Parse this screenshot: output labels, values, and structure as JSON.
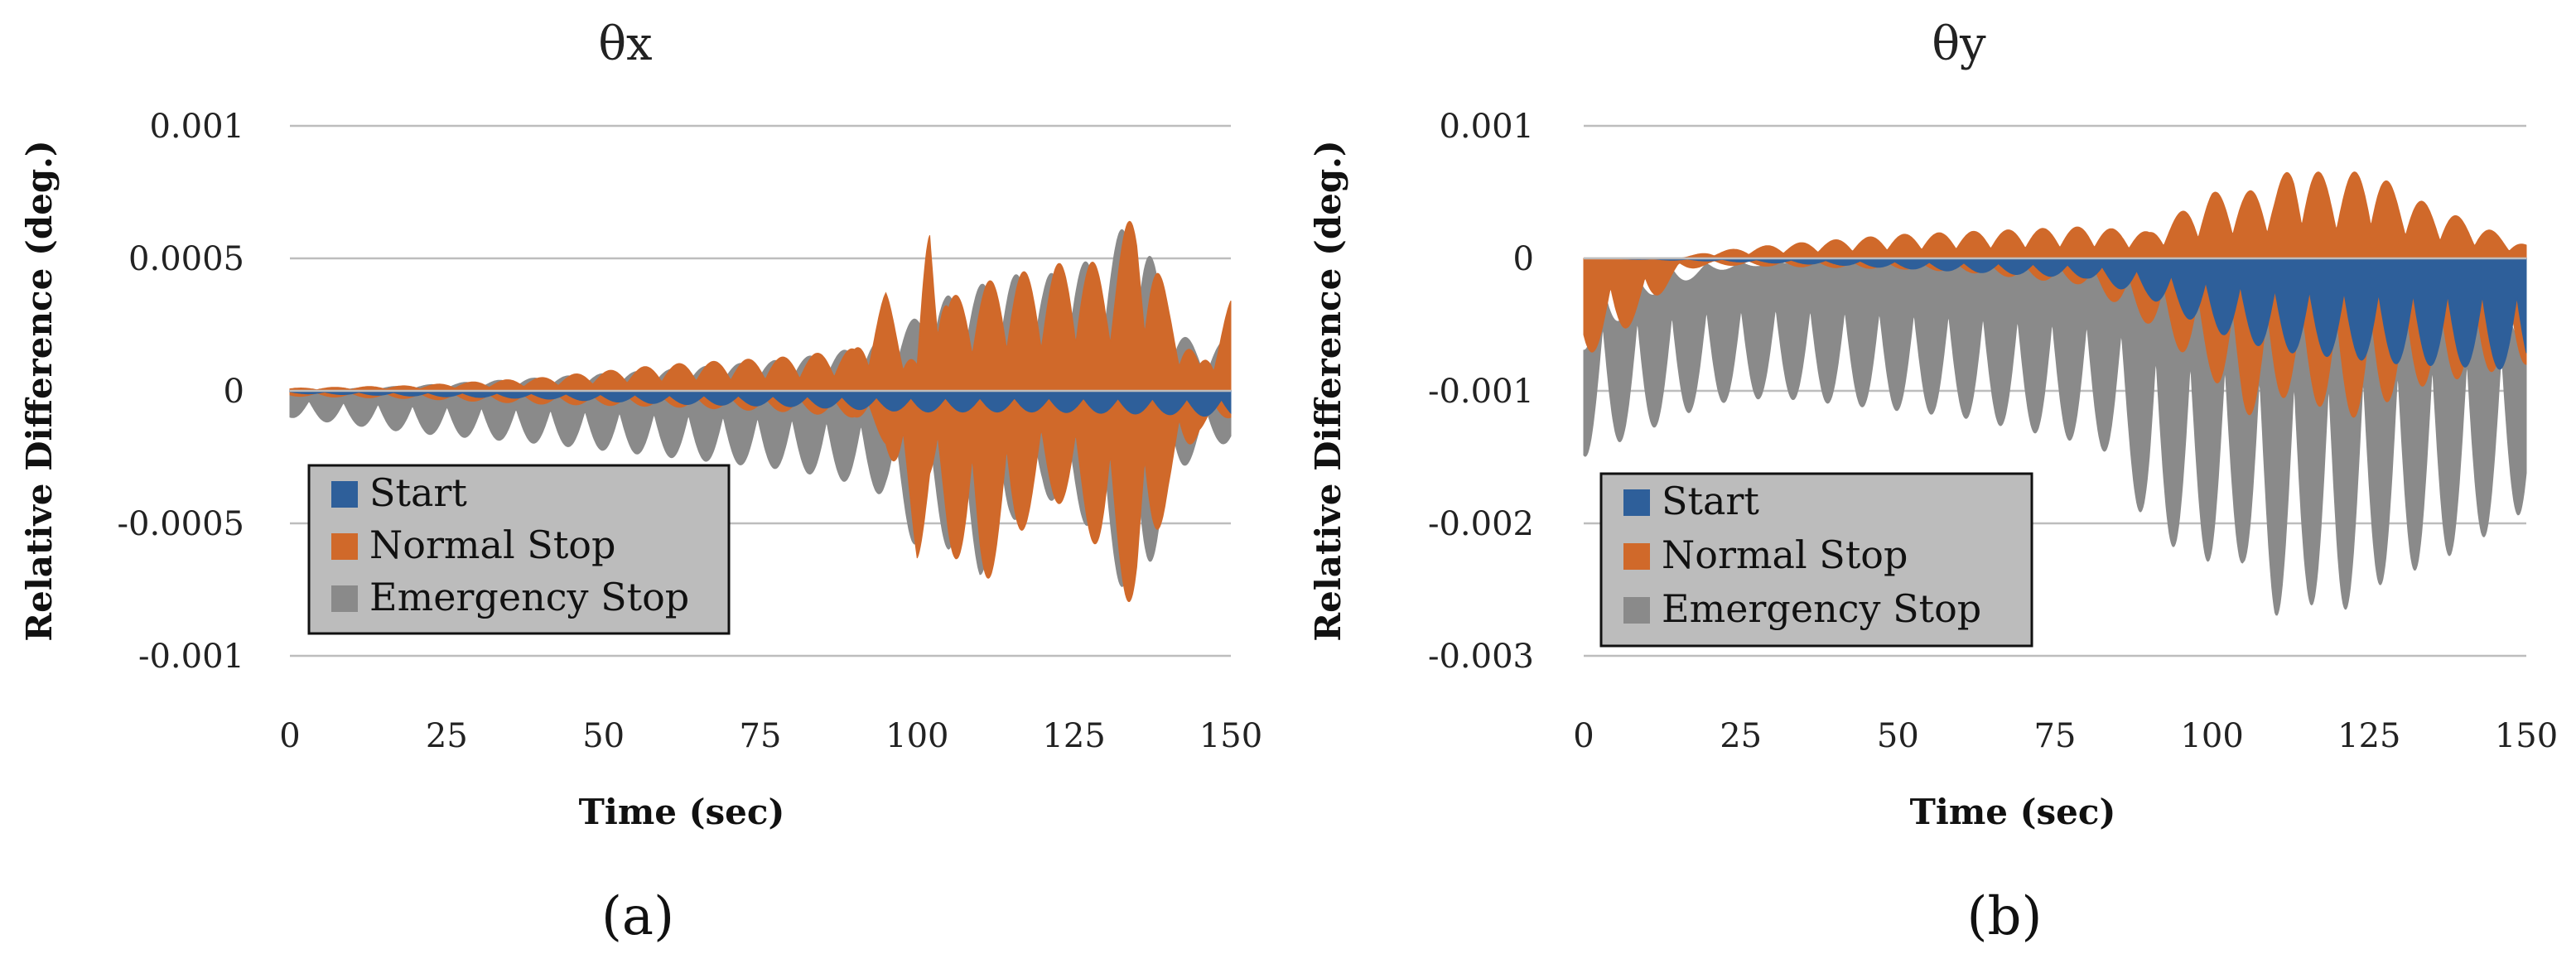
{
  "chart_data": [
    {
      "type": "area",
      "title": "θx",
      "panel_label": "(a)",
      "xlabel": "Time (sec)",
      "ylabel": "Relative Difference (deg.)",
      "xlim": [
        0,
        150
      ],
      "ylim": [
        -0.001,
        0.001
      ],
      "xticks": [
        0,
        25,
        50,
        75,
        100,
        125,
        150
      ],
      "xtick_labels": [
        "0",
        "25",
        "50",
        "75",
        "100",
        "125",
        "150"
      ],
      "yticks": [
        0.001,
        0.0005,
        0,
        -0.0005,
        -0.001
      ],
      "ytick_labels": [
        "0.001",
        "0.0005",
        "0",
        "-0.0005",
        "-0.001"
      ],
      "grid": true,
      "legend_position": "bottom-left",
      "series": [
        {
          "name": "Start",
          "color": "#2E5F9A",
          "x": [
            0,
            20,
            40,
            60,
            80,
            100,
            120,
            140,
            150
          ],
          "upper": [
            0,
            0,
            0,
            0,
            0,
            0,
            0,
            0,
            0
          ],
          "lower": [
            -1e-05,
            -2e-05,
            -3e-05,
            -5e-05,
            -6e-05,
            -8e-05,
            -8e-05,
            -9e-05,
            -0.0001
          ]
        },
        {
          "name": "Normal Stop",
          "color": "#D0692A",
          "x": [
            0,
            20,
            40,
            60,
            80,
            90,
            95,
            100,
            102,
            105,
            110,
            115,
            120,
            125,
            130,
            135,
            140,
            145,
            150
          ],
          "upper": [
            1e-05,
            2e-05,
            5e-05,
            0.0001,
            0.00013,
            0.00016,
            0.00037,
            0.0001,
            0.00075,
            0.00035,
            0.0004,
            0.00045,
            0.00045,
            0.00051,
            0.00047,
            0.0007,
            0.00035,
            0.0001,
            0.00034
          ],
          "lower": [
            -2e-05,
            -3e-05,
            -5e-05,
            -6e-05,
            -8e-05,
            -0.0001,
            -0.0002,
            -0.00065,
            -0.0004,
            -0.0006,
            -0.00075,
            -0.0006,
            -0.0004,
            -0.00045,
            -0.00065,
            -0.00085,
            -0.0004,
            -0.00015,
            -0.0001
          ]
        },
        {
          "name": "Emergency Stop",
          "color": "#8A8A8A",
          "x": [
            0,
            20,
            40,
            60,
            80,
            90,
            95,
            100,
            102,
            105,
            110,
            115,
            120,
            125,
            130,
            135,
            140,
            145,
            150
          ],
          "upper": [
            0,
            2e-05,
            5e-05,
            8e-05,
            0.00012,
            0.00016,
            0.0002,
            0.00028,
            0.00032,
            0.00036,
            0.0004,
            0.00044,
            0.00043,
            0.00048,
            0.0005,
            0.00072,
            0.00028,
            0.00015,
            0.0002
          ],
          "lower": [
            -0.0001,
            -0.00016,
            -0.0002,
            -0.00025,
            -0.0003,
            -0.00035,
            -0.0004,
            -0.0006,
            -0.0005,
            -0.0006,
            -0.0007,
            -0.0005,
            -0.0004,
            -0.00045,
            -0.0006,
            -0.00088,
            -0.0004,
            -0.0002,
            -0.0002
          ]
        }
      ]
    },
    {
      "type": "area",
      "title": "θy",
      "panel_label": "(b)",
      "xlabel": "Time (sec)",
      "ylabel": "Relative Difference (deg.)",
      "xlim": [
        0,
        150
      ],
      "ylim": [
        -0.003,
        0.001
      ],
      "xticks": [
        0,
        25,
        50,
        75,
        100,
        125,
        150
      ],
      "xtick_labels": [
        "0",
        "25",
        "50",
        "75",
        "100",
        "125",
        "150"
      ],
      "yticks": [
        0.001,
        0,
        -0.001,
        -0.002,
        -0.003
      ],
      "ytick_labels": [
        "0.001",
        "0",
        "-0.001",
        "-0.002",
        "-0.003"
      ],
      "grid": true,
      "legend_position": "bottom-left",
      "series": [
        {
          "name": "Start",
          "color": "#2E5F9A",
          "x": [
            0,
            20,
            40,
            60,
            80,
            90,
            100,
            110,
            120,
            130,
            140,
            150
          ],
          "upper": [
            0,
            0,
            0,
            0,
            0,
            0,
            0,
            0,
            0,
            0,
            0,
            0
          ],
          "lower": [
            0,
            -2e-05,
            -5e-05,
            -0.0001,
            -0.00015,
            -0.0003,
            -0.00055,
            -0.0007,
            -0.00075,
            -0.0008,
            -0.00082,
            -0.00085
          ]
        },
        {
          "name": "Normal Stop",
          "color": "#D0692A",
          "x": [
            0,
            5,
            10,
            15,
            20,
            30,
            40,
            50,
            60,
            70,
            80,
            90,
            100,
            105,
            110,
            113,
            120,
            125,
            130,
            140,
            150
          ],
          "upper": [
            0,
            0,
            0,
            0,
            5e-05,
            0.0001,
            0.00014,
            0.00018,
            0.0002,
            0.00022,
            0.00024,
            0.0002,
            0.0005,
            0.0005,
            0.00055,
            0.00072,
            0.0006,
            0.0007,
            0.0005,
            0.0003,
            0.0001
          ],
          "lower": [
            -0.00075,
            -0.0006,
            -0.0004,
            -0.0001,
            -5e-05,
            -6e-05,
            -7e-05,
            -8e-05,
            -0.0001,
            -0.00015,
            -0.0002,
            -0.0005,
            -0.0009,
            -0.0012,
            -0.0011,
            -0.001,
            -0.0012,
            -0.0012,
            -0.001,
            -0.0009,
            -0.0008
          ]
        },
        {
          "name": "Emergency Stop",
          "color": "#8A8A8A",
          "x": [
            0,
            10,
            20,
            30,
            40,
            50,
            60,
            70,
            80,
            85,
            90,
            100,
            105,
            110,
            115,
            120,
            125,
            130,
            140,
            150
          ],
          "upper": [
            -0.0007,
            -0.0003,
            -0.0001,
            -5e-05,
            -3e-05,
            -2e-05,
            -1e-05,
            0,
            0,
            0,
            -0.0002,
            -0.0004,
            -0.0004,
            -0.0004,
            -0.0004,
            -0.0004,
            -0.0004,
            -0.0004,
            -0.0005,
            -0.0006
          ],
          "lower": [
            -0.0015,
            -0.0013,
            -0.0011,
            -0.00105,
            -0.0011,
            -0.00115,
            -0.0012,
            -0.0013,
            -0.0014,
            -0.0015,
            -0.0021,
            -0.0023,
            -0.0023,
            -0.0027,
            -0.0026,
            -0.0027,
            -0.0025,
            -0.0024,
            -0.0022,
            -0.0019
          ]
        }
      ]
    }
  ]
}
